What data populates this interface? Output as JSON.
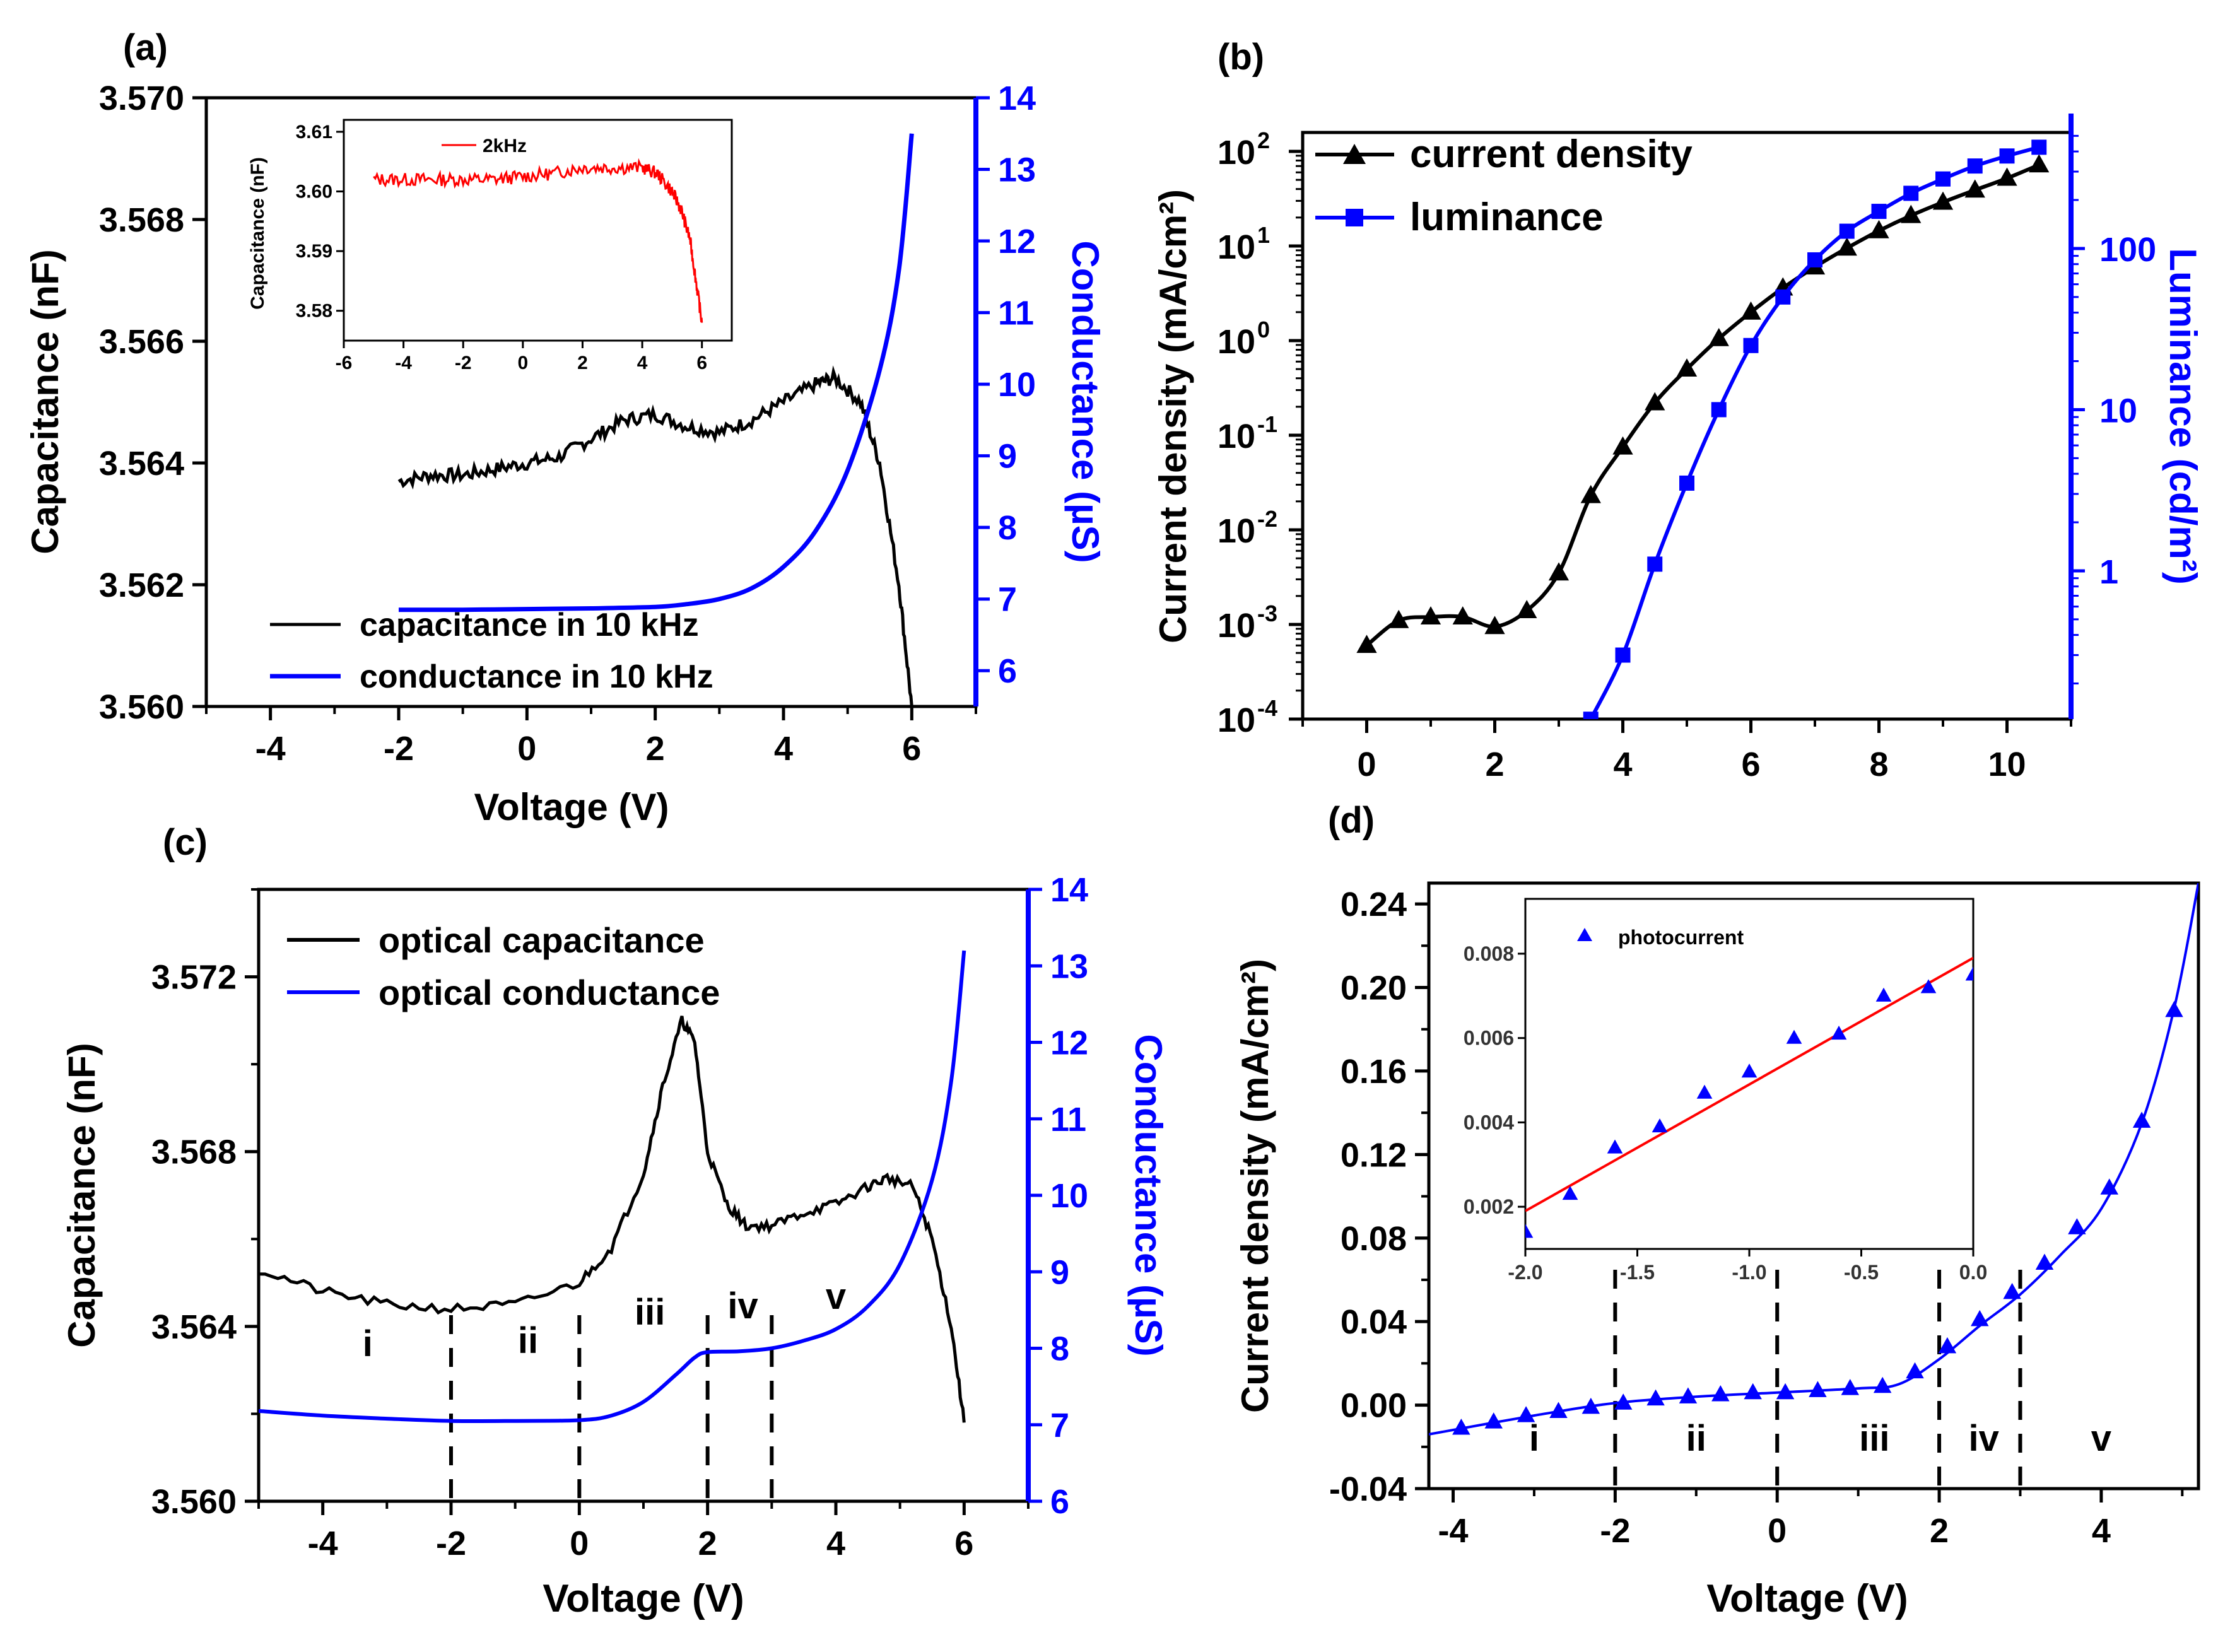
{
  "figure": {
    "panels": [
      "(a)",
      "(b)",
      "(c)",
      "(d)"
    ]
  },
  "chart_data": [
    {
      "id": "a",
      "label": "(a)",
      "type": "line",
      "xlabel": "Voltage (V)",
      "ylabel": "Capacitance (nF)",
      "y2label": "Conductance (µS)",
      "xlim": [
        -5,
        7
      ],
      "ylim": [
        3.56,
        3.57
      ],
      "y2lim": [
        5.5,
        14
      ],
      "xticks": [
        "-4",
        "-2",
        "0",
        "2",
        "4",
        "6"
      ],
      "yticks": [
        "3.560",
        "3.562",
        "3.564",
        "3.566",
        "3.568",
        "3.570"
      ],
      "y2ticks": [
        "6",
        "7",
        "8",
        "9",
        "10",
        "11",
        "12",
        "13",
        "14"
      ],
      "colors": {
        "capacitance": "#000000",
        "conductance": "#0000ff"
      },
      "legend": "bottom-left",
      "series": [
        {
          "name": "capacitance in 10 kHz",
          "axis": "left",
          "x": [
            -2,
            -1.5,
            -1,
            -0.5,
            0,
            0.5,
            1,
            1.5,
            2,
            2.5,
            3,
            3.5,
            4,
            4.5,
            4.8,
            5.2,
            5.5,
            5.8,
            6.0
          ],
          "y": [
            3.5637,
            3.5638,
            3.5638,
            3.5639,
            3.564,
            3.5641,
            3.5644,
            3.5647,
            3.5648,
            3.5646,
            3.5645,
            3.5647,
            3.565,
            3.5653,
            3.5654,
            3.565,
            3.564,
            3.562,
            3.56
          ]
        },
        {
          "name": "conductance in 10 kHz",
          "axis": "right",
          "x": [
            -2,
            -1,
            0,
            1,
            2,
            2.5,
            3,
            3.5,
            4,
            4.5,
            5,
            5.5,
            5.8,
            6.0
          ],
          "y": [
            6.85,
            6.85,
            6.86,
            6.87,
            6.89,
            6.93,
            7.0,
            7.15,
            7.45,
            7.95,
            8.8,
            10.2,
            11.6,
            13.5
          ]
        }
      ],
      "inset": {
        "type": "line",
        "xlabel": "",
        "ylabel": "Capacitance (nF)",
        "xlim": [
          -6,
          7
        ],
        "ylim": [
          3.575,
          3.612
        ],
        "xticks": [
          "-6",
          "-4",
          "-2",
          "0",
          "2",
          "4",
          "6"
        ],
        "yticks": [
          "3.58",
          "3.59",
          "3.60",
          "3.61"
        ],
        "series": [
          {
            "name": "2kHz",
            "color": "#ff0000",
            "x": [
              -5,
              -4,
              -3,
              -2,
              -1,
              0,
              1,
              2,
              3,
              4,
              4.5,
              5,
              5.3,
              5.6,
              5.8,
              6.0
            ],
            "y": [
              3.602,
              3.602,
              3.602,
              3.602,
              3.602,
              3.6025,
              3.603,
              3.604,
              3.604,
              3.604,
              3.603,
              3.6,
              3.597,
              3.592,
              3.585,
              3.578
            ]
          }
        ]
      }
    },
    {
      "id": "b",
      "label": "(b)",
      "type": "line",
      "xlabel": "",
      "ylabel": "Current density (mA/cm²)",
      "y2label": "Luminance (cd/m²)",
      "xlim": [
        -1,
        11
      ],
      "ylim_log10": [
        -4,
        2.2
      ],
      "y2lim_log10": [
        -0.92,
        2.72
      ],
      "xticks": [
        "0",
        "2",
        "4",
        "6",
        "8",
        "10"
      ],
      "yticks": [
        {
          "base": "10",
          "exp": "2"
        },
        {
          "base": "10",
          "exp": "1"
        },
        {
          "base": "10",
          "exp": "0"
        },
        {
          "base": "10",
          "exp": "-1"
        },
        {
          "base": "10",
          "exp": "-2"
        },
        {
          "base": "10",
          "exp": "-3"
        },
        {
          "base": "10",
          "exp": "-4"
        }
      ],
      "y2ticks": [
        "100",
        "10",
        "1"
      ],
      "legend": "top-left",
      "series": [
        {
          "name": "current density",
          "axis": "left",
          "marker": "triangle",
          "color": "#000000",
          "x": [
            0,
            0.5,
            1,
            1.5,
            2,
            2.5,
            3,
            3.5,
            4,
            4.5,
            5,
            5.5,
            6,
            6.5,
            7,
            7.5,
            8,
            8.5,
            9,
            9.5,
            10,
            10.5
          ],
          "y": [
            0.0006,
            0.0011,
            0.0012,
            0.0012,
            0.00095,
            0.0014,
            0.0035,
            0.023,
            0.075,
            0.22,
            0.5,
            1.05,
            2.0,
            3.6,
            6.0,
            9.5,
            14.5,
            21,
            29,
            39,
            52,
            72
          ]
        },
        {
          "name": "luminance",
          "axis": "right",
          "marker": "square",
          "color": "#0000ff",
          "x": [
            3.5,
            4.0,
            4.5,
            5.0,
            5.5,
            6.0,
            6.5,
            7.0,
            7.5,
            8.0,
            8.5,
            9.0,
            9.5,
            10.0,
            10.5
          ],
          "y": [
            0.12,
            0.3,
            1.1,
            3.5,
            10,
            25,
            50,
            85,
            128,
            170,
            220,
            270,
            325,
            375,
            425
          ]
        }
      ]
    },
    {
      "id": "c",
      "label": "(c)",
      "type": "line",
      "xlabel": "Voltage (V)",
      "ylabel": "Capacitance (nF)",
      "y2label": "Conductance (µS)",
      "xlim": [
        -5,
        7
      ],
      "ylim": [
        3.56,
        3.574
      ],
      "y2lim": [
        6,
        14
      ],
      "xticks": [
        "-4",
        "-2",
        "0",
        "2",
        "4",
        "6"
      ],
      "yticks": [
        "3.560",
        "3.564",
        "3.568",
        "3.572"
      ],
      "y2ticks": [
        "6",
        "7",
        "8",
        "9",
        "10",
        "11",
        "12",
        "13",
        "14"
      ],
      "legend": "top-left",
      "regions": [
        "i",
        "ii",
        "iii",
        "iv",
        "v"
      ],
      "region_boundaries": [
        -2,
        0,
        2,
        3
      ],
      "series": [
        {
          "name": "optical capacitance",
          "axis": "left",
          "color": "#000000",
          "x": [
            -5,
            -4,
            -3,
            -2,
            -1,
            0,
            0.5,
            1.0,
            1.3,
            1.6,
            1.8,
            2.0,
            2.3,
            2.6,
            3.0,
            3.5,
            4.0,
            4.5,
            4.8,
            5.2,
            5.5,
            5.8,
            6.0
          ],
          "y": [
            3.5653,
            3.5648,
            3.5645,
            3.5644,
            3.5645,
            3.565,
            3.5658,
            3.5675,
            3.5695,
            3.571,
            3.5705,
            3.568,
            3.5668,
            3.5663,
            3.5663,
            3.5666,
            3.5668,
            3.5672,
            3.5674,
            3.5672,
            3.566,
            3.564,
            3.5618
          ]
        },
        {
          "name": "optical conductance",
          "axis": "right",
          "color": "#0000ff",
          "x": [
            -5,
            -4,
            -3,
            -2,
            -1,
            0,
            0.5,
            1.0,
            1.5,
            1.8,
            2.0,
            2.5,
            3.0,
            3.5,
            4.0,
            4.5,
            5.0,
            5.5,
            5.8,
            6.0
          ],
          "y": [
            7.18,
            7.12,
            7.08,
            7.05,
            7.05,
            7.06,
            7.12,
            7.3,
            7.65,
            7.88,
            7.95,
            7.96,
            8.0,
            8.1,
            8.25,
            8.55,
            9.1,
            10.2,
            11.5,
            13.2
          ]
        }
      ]
    },
    {
      "id": "d",
      "label": "(d)",
      "type": "scatter",
      "xlabel": "Voltage (V)",
      "ylabel": "Current density (mA/cm²)",
      "xlim": [
        -4.3,
        5.2
      ],
      "ylim": [
        -0.04,
        0.25
      ],
      "xticks": [
        "-4",
        "-2",
        "0",
        "2",
        "4"
      ],
      "yticks": [
        "-0.04",
        "0.00",
        "0.04",
        "0.08",
        "0.12",
        "0.16",
        "0.20",
        "0.24"
      ],
      "regions": [
        "i",
        "ii",
        "iii",
        "iv",
        "v"
      ],
      "region_boundaries": [
        -2,
        0,
        2,
        3
      ],
      "series": [
        {
          "name": "current density",
          "color": "#0000ff",
          "marker": "triangle",
          "x": [
            -3.9,
            -3.5,
            -3.1,
            -2.7,
            -2.3,
            -1.9,
            -1.5,
            -1.1,
            -0.7,
            -0.3,
            0.1,
            0.5,
            0.9,
            1.3,
            1.7,
            2.1,
            2.5,
            2.9,
            3.3,
            3.7,
            4.1,
            4.5,
            4.9
          ],
          "y": [
            -0.011,
            -0.008,
            -0.005,
            -0.003,
            -0.001,
            0.001,
            0.003,
            0.004,
            0.005,
            0.006,
            0.006,
            0.007,
            0.008,
            0.009,
            0.016,
            0.028,
            0.041,
            0.054,
            0.068,
            0.085,
            0.104,
            0.136,
            0.189
          ]
        }
      ],
      "fit_line": {
        "color": "#0000ff",
        "x": [
          -4.3,
          -3,
          -2,
          -1,
          0,
          1,
          1.5,
          2.0,
          2.5,
          3.0,
          3.5,
          4.0,
          4.5,
          4.9,
          5.2
        ],
        "y": [
          -0.014,
          -0.005,
          0.001,
          0.004,
          0.006,
          0.008,
          0.01,
          0.022,
          0.038,
          0.053,
          0.072,
          0.094,
          0.135,
          0.19,
          0.25
        ]
      },
      "inset": {
        "type": "scatter",
        "xlim": [
          -2.0,
          0.0
        ],
        "ylim": [
          0.001,
          0.0093
        ],
        "xticks": [
          "-2.0",
          "-1.5",
          "-1.0",
          "-0.5",
          "0.0"
        ],
        "yticks": [
          "0.002",
          "0.004",
          "0.006",
          "0.008"
        ],
        "series": [
          {
            "name": "photocurrent",
            "color": "#0000ff",
            "marker": "triangle",
            "x": [
              -2.0,
              -1.8,
              -1.6,
              -1.4,
              -1.2,
              -1.0,
              -0.8,
              -0.6,
              -0.4,
              -0.2,
              0.0
            ],
            "y": [
              0.0014,
              0.0023,
              0.0034,
              0.0039,
              0.0047,
              0.0052,
              0.006,
              0.0061,
              0.007,
              0.0072,
              0.0075
            ]
          }
        ],
        "fit_line": {
          "color": "#ff0000",
          "x": [
            -2.0,
            0.0
          ],
          "y": [
            0.0019,
            0.0079
          ]
        }
      }
    }
  ]
}
